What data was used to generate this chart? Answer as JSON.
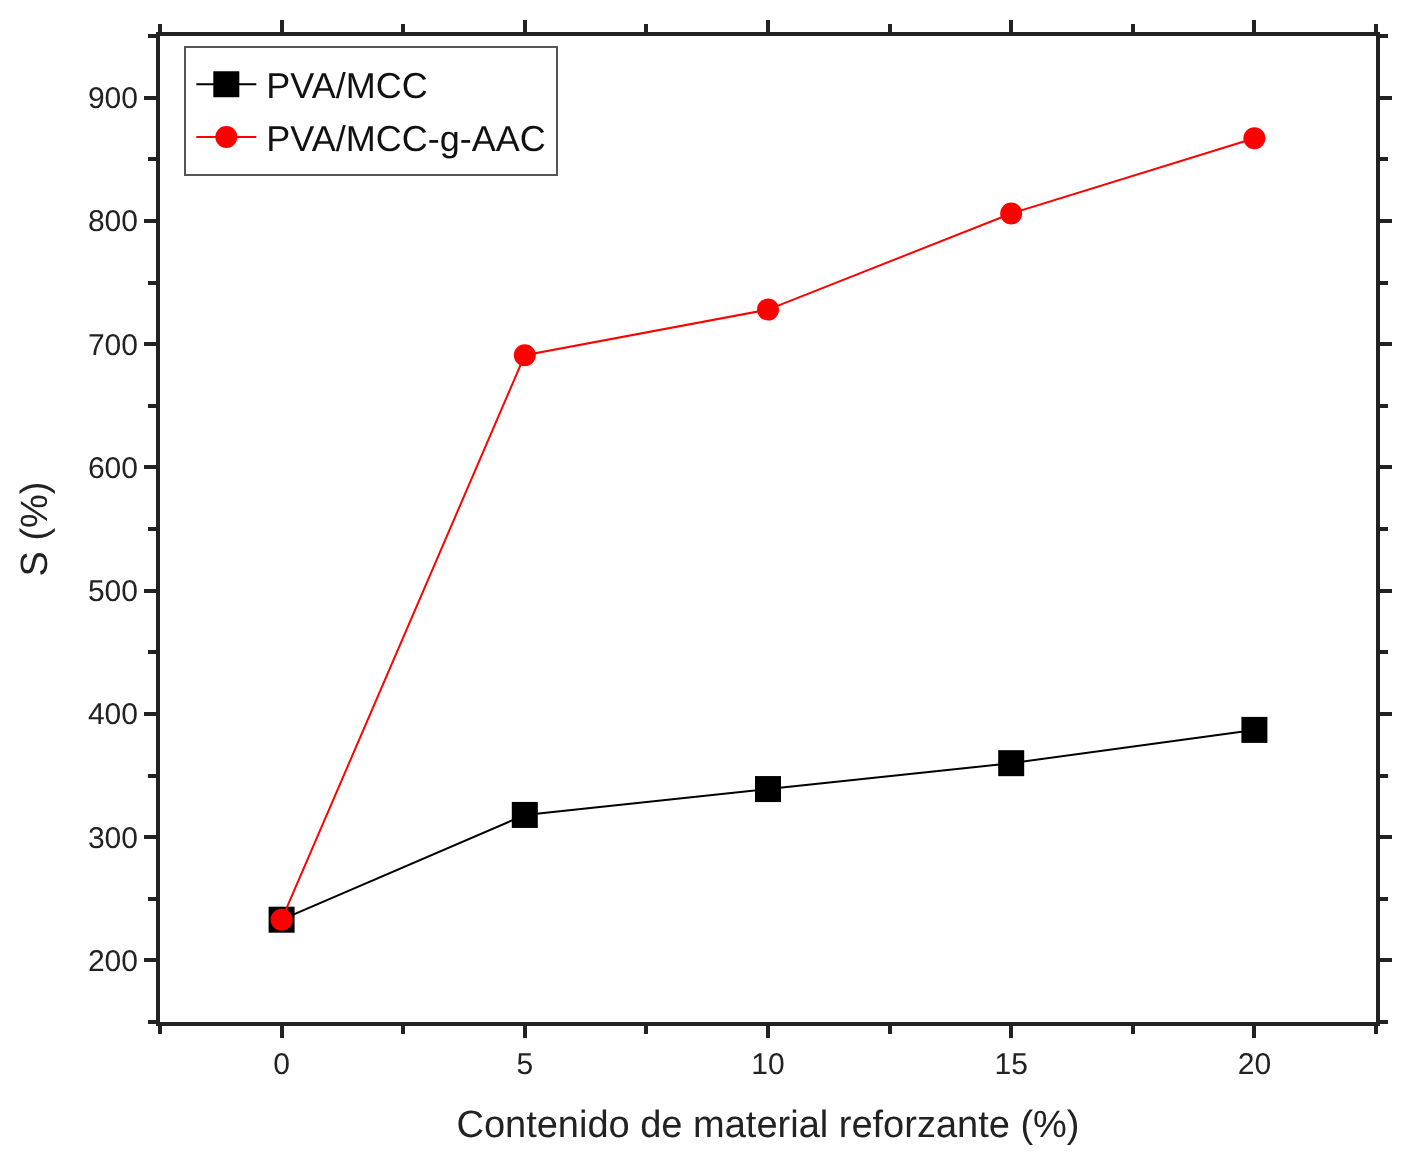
{
  "chart_data": {
    "type": "line",
    "xlabel": "Contenido de material reforzante (%)",
    "ylabel": "S (%)",
    "x": [
      0,
      5,
      10,
      15,
      20
    ],
    "series": [
      {
        "name": "PVA/MCC",
        "color": "#000000",
        "marker": "square",
        "values": [
          233,
          318,
          339,
          360,
          387
        ]
      },
      {
        "name": "PVA/MCC-g-AAC",
        "color": "#ff0000",
        "marker": "circle",
        "values": [
          233,
          691,
          728,
          806,
          867
        ]
      }
    ],
    "xlim": [
      -2.5,
      22.5
    ],
    "xticks": [
      0,
      5,
      10,
      15,
      20
    ],
    "ylim": [
      150,
      950
    ],
    "yticks": [
      200,
      300,
      400,
      500,
      600,
      700,
      800,
      900
    ],
    "legend": "top left"
  }
}
